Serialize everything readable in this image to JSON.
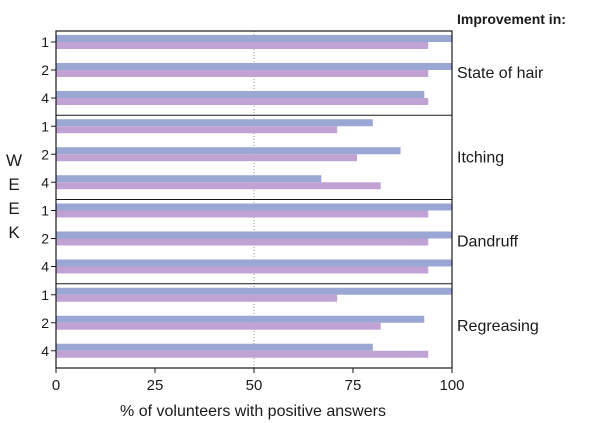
{
  "chart_data": {
    "type": "bar",
    "orientation": "horizontal",
    "legend_title": "Improvement in:",
    "xlabel": "% of volunteers with positive answers",
    "ylabel": "WEEK",
    "xlim": [
      0,
      100
    ],
    "xticks": [
      "0",
      "25",
      "50",
      "75",
      "100"
    ],
    "reference_line": 50,
    "colors": {
      "bar_a": "#9aa6d3",
      "bar_b": "#c1a3d3"
    },
    "groups": [
      {
        "name": "State of hair",
        "weeks": [
          {
            "week": "1",
            "values": [
              100,
              94
            ]
          },
          {
            "week": "2",
            "values": [
              100,
              94
            ]
          },
          {
            "week": "4",
            "values": [
              93,
              94
            ]
          }
        ]
      },
      {
        "name": "Itching",
        "weeks": [
          {
            "week": "1",
            "values": [
              80,
              71
            ]
          },
          {
            "week": "2",
            "values": [
              87,
              76
            ]
          },
          {
            "week": "4",
            "values": [
              67,
              82
            ]
          }
        ]
      },
      {
        "name": "Dandruff",
        "weeks": [
          {
            "week": "1",
            "values": [
              100,
              94
            ]
          },
          {
            "week": "2",
            "values": [
              100,
              94
            ]
          },
          {
            "week": "4",
            "values": [
              100,
              94
            ]
          }
        ]
      },
      {
        "name": "Regreasing",
        "weeks": [
          {
            "week": "1",
            "values": [
              100,
              71
            ]
          },
          {
            "week": "2",
            "values": [
              93,
              82
            ]
          },
          {
            "week": "4",
            "values": [
              80,
              94
            ]
          }
        ]
      }
    ]
  }
}
